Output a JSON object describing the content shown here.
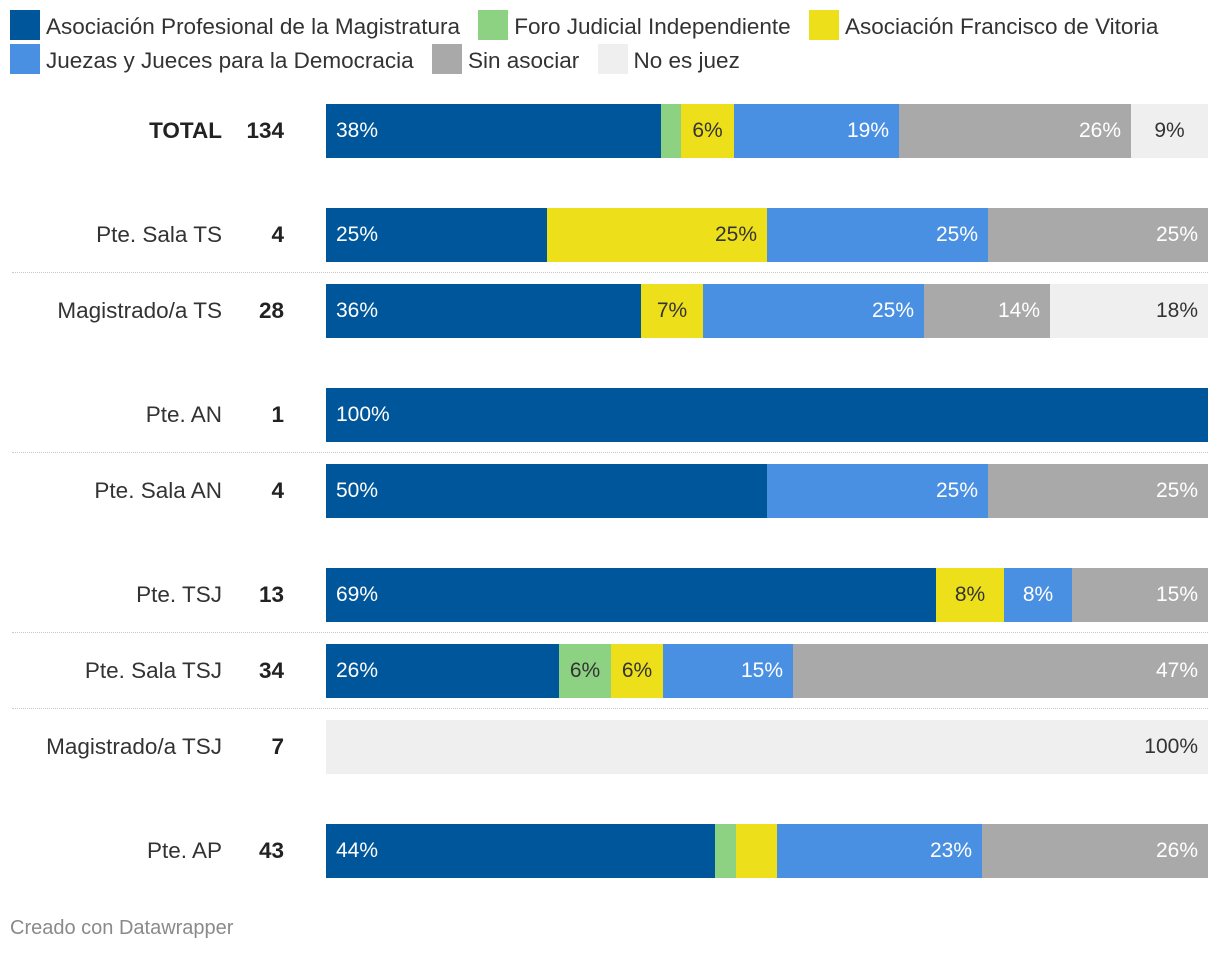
{
  "legend": [
    {
      "label": "Asociación Profesional de la Magistratura",
      "color": "#00569a"
    },
    {
      "label": "Foro Judicial Independiente",
      "color": "#8dd282"
    },
    {
      "label": "Asociación Francisco de Vitoria",
      "color": "#ede01b"
    },
    {
      "label": "Juezas y Jueces para la Democracia",
      "color": "#4a90e2"
    },
    {
      "label": "Sin asociar",
      "color": "#a9a9a9"
    },
    {
      "label": "No es juez",
      "color": "#efefef"
    }
  ],
  "chart_data": {
    "type": "bar",
    "orientation": "horizontal-stacked-100",
    "series": [
      "Asociación Profesional de la Magistratura",
      "Foro Judicial Independiente",
      "Asociación Francisco de Vitoria",
      "Juezas y Jueces para la Democracia",
      "Sin asociar",
      "No es juez"
    ],
    "rows": [
      {
        "label": "TOTAL",
        "count": "134",
        "bold": true,
        "values": [
          38,
          2.3,
          6,
          18.7,
          26.3,
          8.7
        ],
        "labels": [
          "38%",
          "",
          "6%",
          "19%",
          "26%",
          "9%"
        ]
      },
      {
        "label": "Pte. Sala TS",
        "count": "4",
        "bold": false,
        "values": [
          25,
          0,
          25,
          25,
          25,
          0
        ],
        "labels": [
          "25%",
          "",
          "25%",
          "25%",
          "25%",
          ""
        ]
      },
      {
        "label": "Magistrado/a TS",
        "count": "28",
        "bold": false,
        "values": [
          35.7,
          0,
          7.1,
          25,
          14.3,
          17.9
        ],
        "labels": [
          "36%",
          "",
          "7%",
          "25%",
          "14%",
          "18%"
        ]
      },
      {
        "label": "Pte. AN",
        "count": "1",
        "bold": false,
        "values": [
          100,
          0,
          0,
          0,
          0,
          0
        ],
        "labels": [
          "100%",
          "",
          "",
          "",
          "",
          ""
        ]
      },
      {
        "label": "Pte. Sala AN",
        "count": "4",
        "bold": false,
        "values": [
          50,
          0,
          0,
          25,
          25,
          0
        ],
        "labels": [
          "50%",
          "",
          "",
          "25%",
          "25%",
          ""
        ]
      },
      {
        "label": "Pte. TSJ",
        "count": "13",
        "bold": false,
        "values": [
          69.2,
          0,
          7.7,
          7.7,
          15.4,
          0
        ],
        "labels": [
          "69%",
          "",
          "8%",
          "8%",
          "15%",
          ""
        ]
      },
      {
        "label": "Pte. Sala TSJ",
        "count": "34",
        "bold": false,
        "values": [
          26.5,
          5.9,
          5.9,
          14.7,
          47.1,
          0
        ],
        "labels": [
          "26%",
          "6%",
          "6%",
          "15%",
          "47%",
          ""
        ]
      },
      {
        "label": "Magistrado/a TSJ",
        "count": "7",
        "bold": false,
        "values": [
          0,
          0,
          0,
          0,
          0,
          100
        ],
        "labels": [
          "",
          "",
          "",
          "",
          "",
          "100%"
        ]
      },
      {
        "label": "Pte. AP",
        "count": "43",
        "bold": false,
        "values": [
          44.2,
          2.3,
          4.7,
          23.3,
          25.6,
          0
        ],
        "labels": [
          "44%",
          "",
          "",
          "23%",
          "26%",
          ""
        ]
      }
    ]
  },
  "credit": "Creado con Datawrapper"
}
